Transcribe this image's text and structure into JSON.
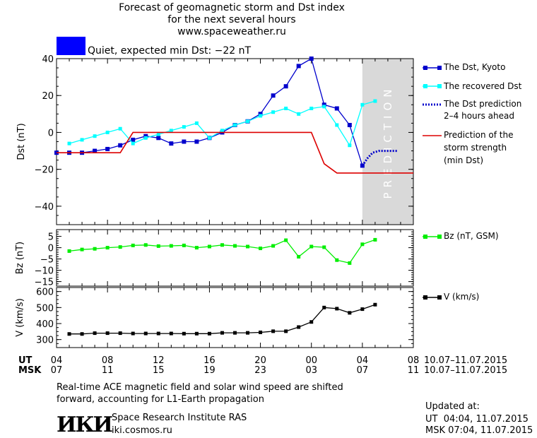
{
  "header": {
    "line1": "Forecast of geomagnetic storm and Dst index",
    "line2": "for the next several hours",
    "line3": "www.spaceweather.ru"
  },
  "status": {
    "color": "#0000ff",
    "text": "Quiet, expected min Dst: −22 nT"
  },
  "colors": {
    "dst": "#0000cc",
    "recovered": "#00ffff",
    "prediction": "#0000cc",
    "strength": "#dd0000",
    "bz": "#00ee00",
    "v": "#000000",
    "prediction_band": "#d9d9d9"
  },
  "chart_data": [
    {
      "type": "line",
      "ylabel": "Dst (nT)",
      "ylim": [
        -50,
        40
      ],
      "yticks": [
        "40",
        "20",
        "0",
        "−20",
        "−40"
      ],
      "ytick_values": [
        40,
        20,
        0,
        -20,
        -40
      ],
      "xlim": [
        4,
        32
      ],
      "prediction_text": "PREDICTION",
      "prediction_range": [
        28,
        32
      ],
      "series": [
        {
          "name": "The Dst, Kyoto",
          "x": [
            4,
            5,
            6,
            7,
            8,
            9,
            10,
            11,
            12,
            13,
            14,
            15,
            16,
            17,
            18,
            19,
            20,
            21,
            22,
            23,
            24,
            25,
            26,
            27,
            28
          ],
          "values": [
            -11,
            -11,
            -11,
            -10,
            -9,
            -7,
            -4,
            -2,
            -3,
            -6,
            -5,
            -5,
            -3,
            0,
            4,
            6,
            10,
            20,
            25,
            36,
            40,
            15,
            13,
            4,
            -18
          ]
        },
        {
          "name": "The recovered Dst",
          "x": [
            5,
            6,
            7,
            8,
            9,
            10,
            11,
            12,
            13,
            14,
            15,
            16,
            17,
            18,
            19,
            20,
            21,
            22,
            23,
            24,
            25,
            26,
            27,
            28,
            29
          ],
          "values": [
            -6,
            -4,
            -2,
            0,
            2,
            -6,
            -3,
            -1,
            1,
            3,
            5,
            -3,
            1,
            4,
            6,
            9,
            11,
            13,
            10,
            13,
            14,
            4,
            -7,
            15,
            17
          ]
        },
        {
          "name": "The Dst prediction\n2–4 hours ahead",
          "x": [
            28,
            28.4,
            28.8,
            29.3,
            29.8,
            30.3,
            30.8
          ],
          "values": [
            -18,
            -14,
            -11,
            -10,
            -10,
            -10,
            -10
          ]
        },
        {
          "name": "Prediction of the\nstorm strength\n(min Dst)",
          "x": [
            4,
            9,
            10,
            24,
            25,
            26,
            27,
            32
          ],
          "values": [
            -11,
            -11,
            0,
            0,
            -17,
            -22,
            -22,
            -22
          ]
        }
      ]
    },
    {
      "type": "line",
      "ylabel": "Bz (nT)",
      "ylim": [
        -17,
        8
      ],
      "yticks": [
        "5",
        "0",
        "−5",
        "−10",
        "−15"
      ],
      "ytick_values": [
        5,
        0,
        -5,
        -10,
        -15
      ],
      "xlim": [
        4,
        32
      ],
      "series": [
        {
          "name": "Bz (nT, GSM)",
          "x": [
            5,
            6,
            7,
            8,
            9,
            10,
            11,
            12,
            13,
            14,
            15,
            16,
            17,
            18,
            19,
            20,
            21,
            22,
            23,
            24,
            25,
            26,
            27,
            28,
            29
          ],
          "values": [
            -1.5,
            -0.8,
            -0.5,
            0,
            0.3,
            1,
            1.2,
            0.7,
            0.8,
            1,
            0,
            0.5,
            1.2,
            0.8,
            0.5,
            -0.3,
            0.8,
            3.3,
            -4,
            0.5,
            0.2,
            -5.5,
            -6.8,
            1.5,
            3.5
          ]
        }
      ]
    },
    {
      "type": "line",
      "ylabel": "V (km/s)",
      "ylim": [
        250,
        625
      ],
      "yticks": [
        "600",
        "500",
        "400",
        "300"
      ],
      "ytick_values": [
        600,
        500,
        400,
        300
      ],
      "xlim": [
        4,
        32
      ],
      "xticks_ut": [
        "04",
        "08",
        "12",
        "16",
        "20",
        "00",
        "04",
        "08"
      ],
      "xticks_msk": [
        "07",
        "11",
        "15",
        "19",
        "23",
        "03",
        "07",
        "11"
      ],
      "xtick_values": [
        4,
        8,
        12,
        16,
        20,
        24,
        28,
        32
      ],
      "x_row_labels": {
        "ut": "UT",
        "msk": "MSK"
      },
      "date_range_ut": "10.07–11.07.2015",
      "date_range_msk": "10.07–11.07.2015",
      "series": [
        {
          "name": "V (km/s)",
          "x": [
            5,
            6,
            7,
            8,
            9,
            10,
            11,
            12,
            13,
            14,
            15,
            16,
            17,
            18,
            19,
            20,
            21,
            22,
            23,
            24,
            25,
            26,
            27,
            28,
            29
          ],
          "values": [
            335,
            335,
            340,
            340,
            340,
            338,
            338,
            338,
            338,
            337,
            337,
            337,
            342,
            342,
            342,
            345,
            352,
            352,
            378,
            410,
            500,
            493,
            467,
            490,
            518
          ]
        }
      ]
    }
  ],
  "legend": {
    "dst": "The Dst, Kyoto",
    "recovered": "The recovered Dst",
    "prediction_1": "The Dst prediction",
    "prediction_2": "2–4 hours ahead",
    "strength_1": "Prediction of the",
    "strength_2": "storm strength",
    "strength_3": "(min Dst)",
    "bz": "Bz (nT, GSM)",
    "v": "V (km/s)"
  },
  "footer": {
    "note_1": "Real-time ACE magnetic field and solar wind speed are shifted",
    "note_2": "forward, accounting for L1-Earth propagation",
    "logo_text": "ИКИ",
    "institute": "Space Research Institute RAS",
    "site": "iki.cosmos.ru",
    "updated_label": "Updated at:",
    "updated_ut": "UT  04:04, 11.07.2015",
    "updated_msk": "MSK 07:04, 11.07.2015"
  }
}
